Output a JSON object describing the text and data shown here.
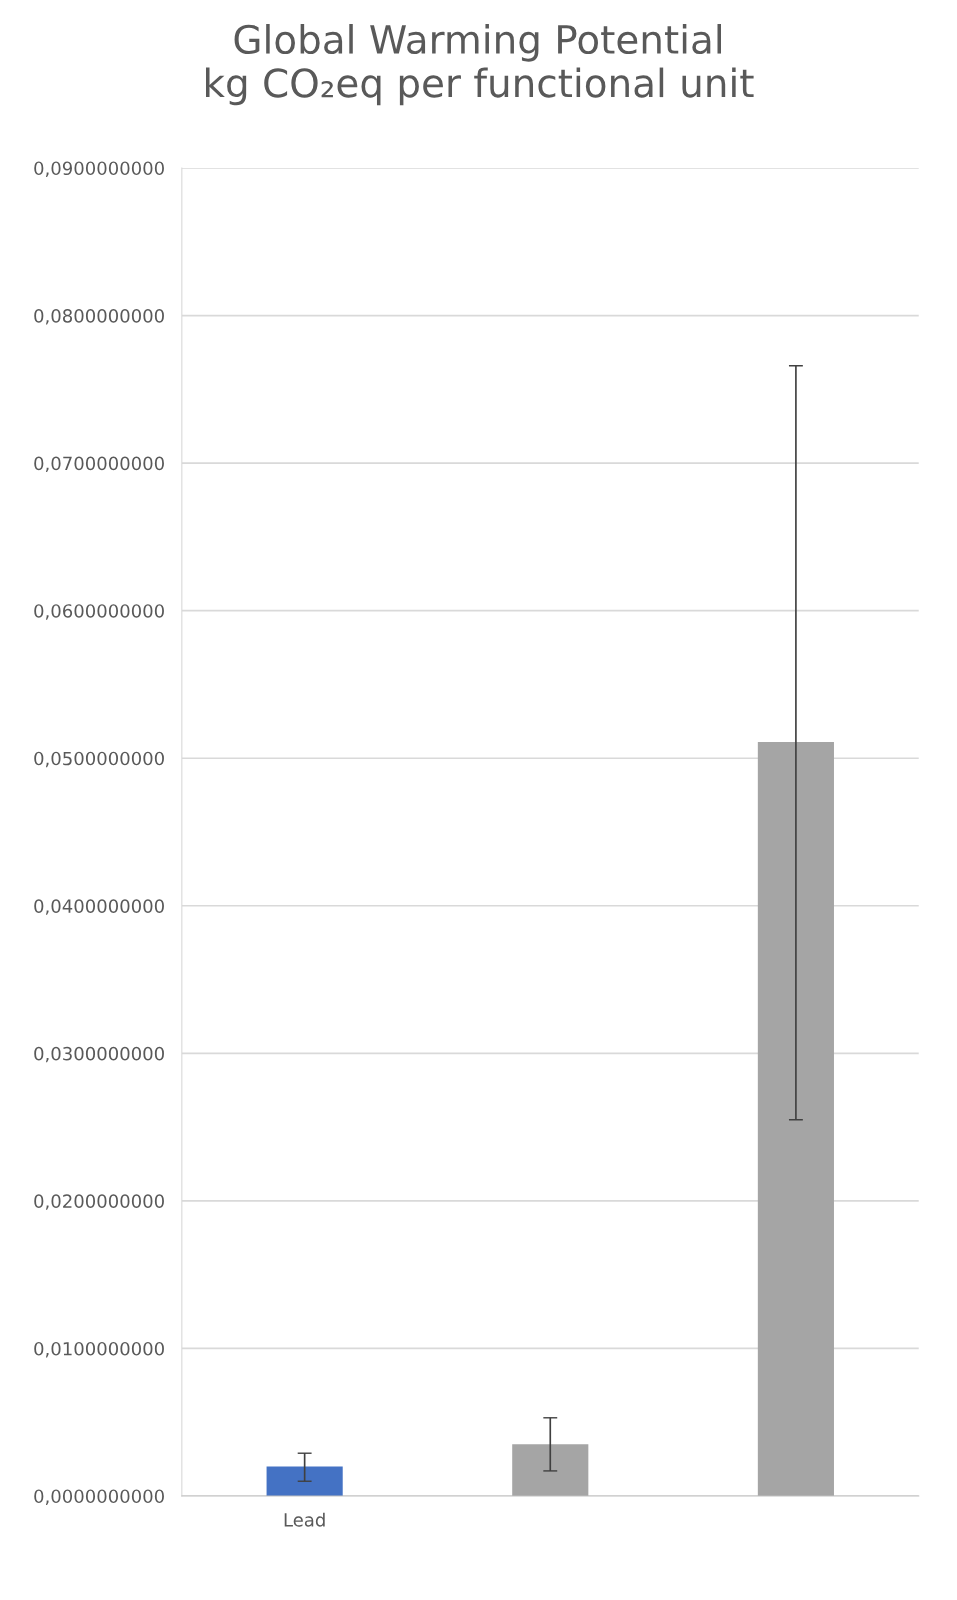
{
  "chart_data": {
    "type": "bar",
    "title": "Global Warming Potential\nkg CO₂eq per functional unit",
    "categories": [
      "Lead",
      null,
      null
    ],
    "values": [
      0.002,
      0.0035,
      0.0511
    ],
    "colors": [
      "#4472c4",
      "#a5a5a5",
      "#a5a5a5"
    ],
    "errors": [
      [
        0.001,
        0.0029
      ],
      [
        0.0017,
        0.0053
      ],
      [
        0.0255,
        0.0766
      ]
    ],
    "ylim": [
      0,
      0.09
    ],
    "yticks": [
      {
        "value": 0,
        "label": "0,0000000000"
      },
      {
        "value": 0.01,
        "label": "0,0100000000"
      },
      {
        "value": 0.02,
        "label": "0,0200000000"
      },
      {
        "value": 0.03,
        "label": "0,0300000000"
      },
      {
        "value": 0.04,
        "label": "0,0400000000"
      },
      {
        "value": 0.05,
        "label": "0,0500000000"
      },
      {
        "value": 0.06,
        "label": "0,0600000000"
      },
      {
        "value": 0.07,
        "label": "0,0700000000"
      },
      {
        "value": 0.08,
        "label": "0,0800000000"
      },
      {
        "value": 0.09,
        "label": "0,0900000000"
      }
    ],
    "grid": "y"
  }
}
